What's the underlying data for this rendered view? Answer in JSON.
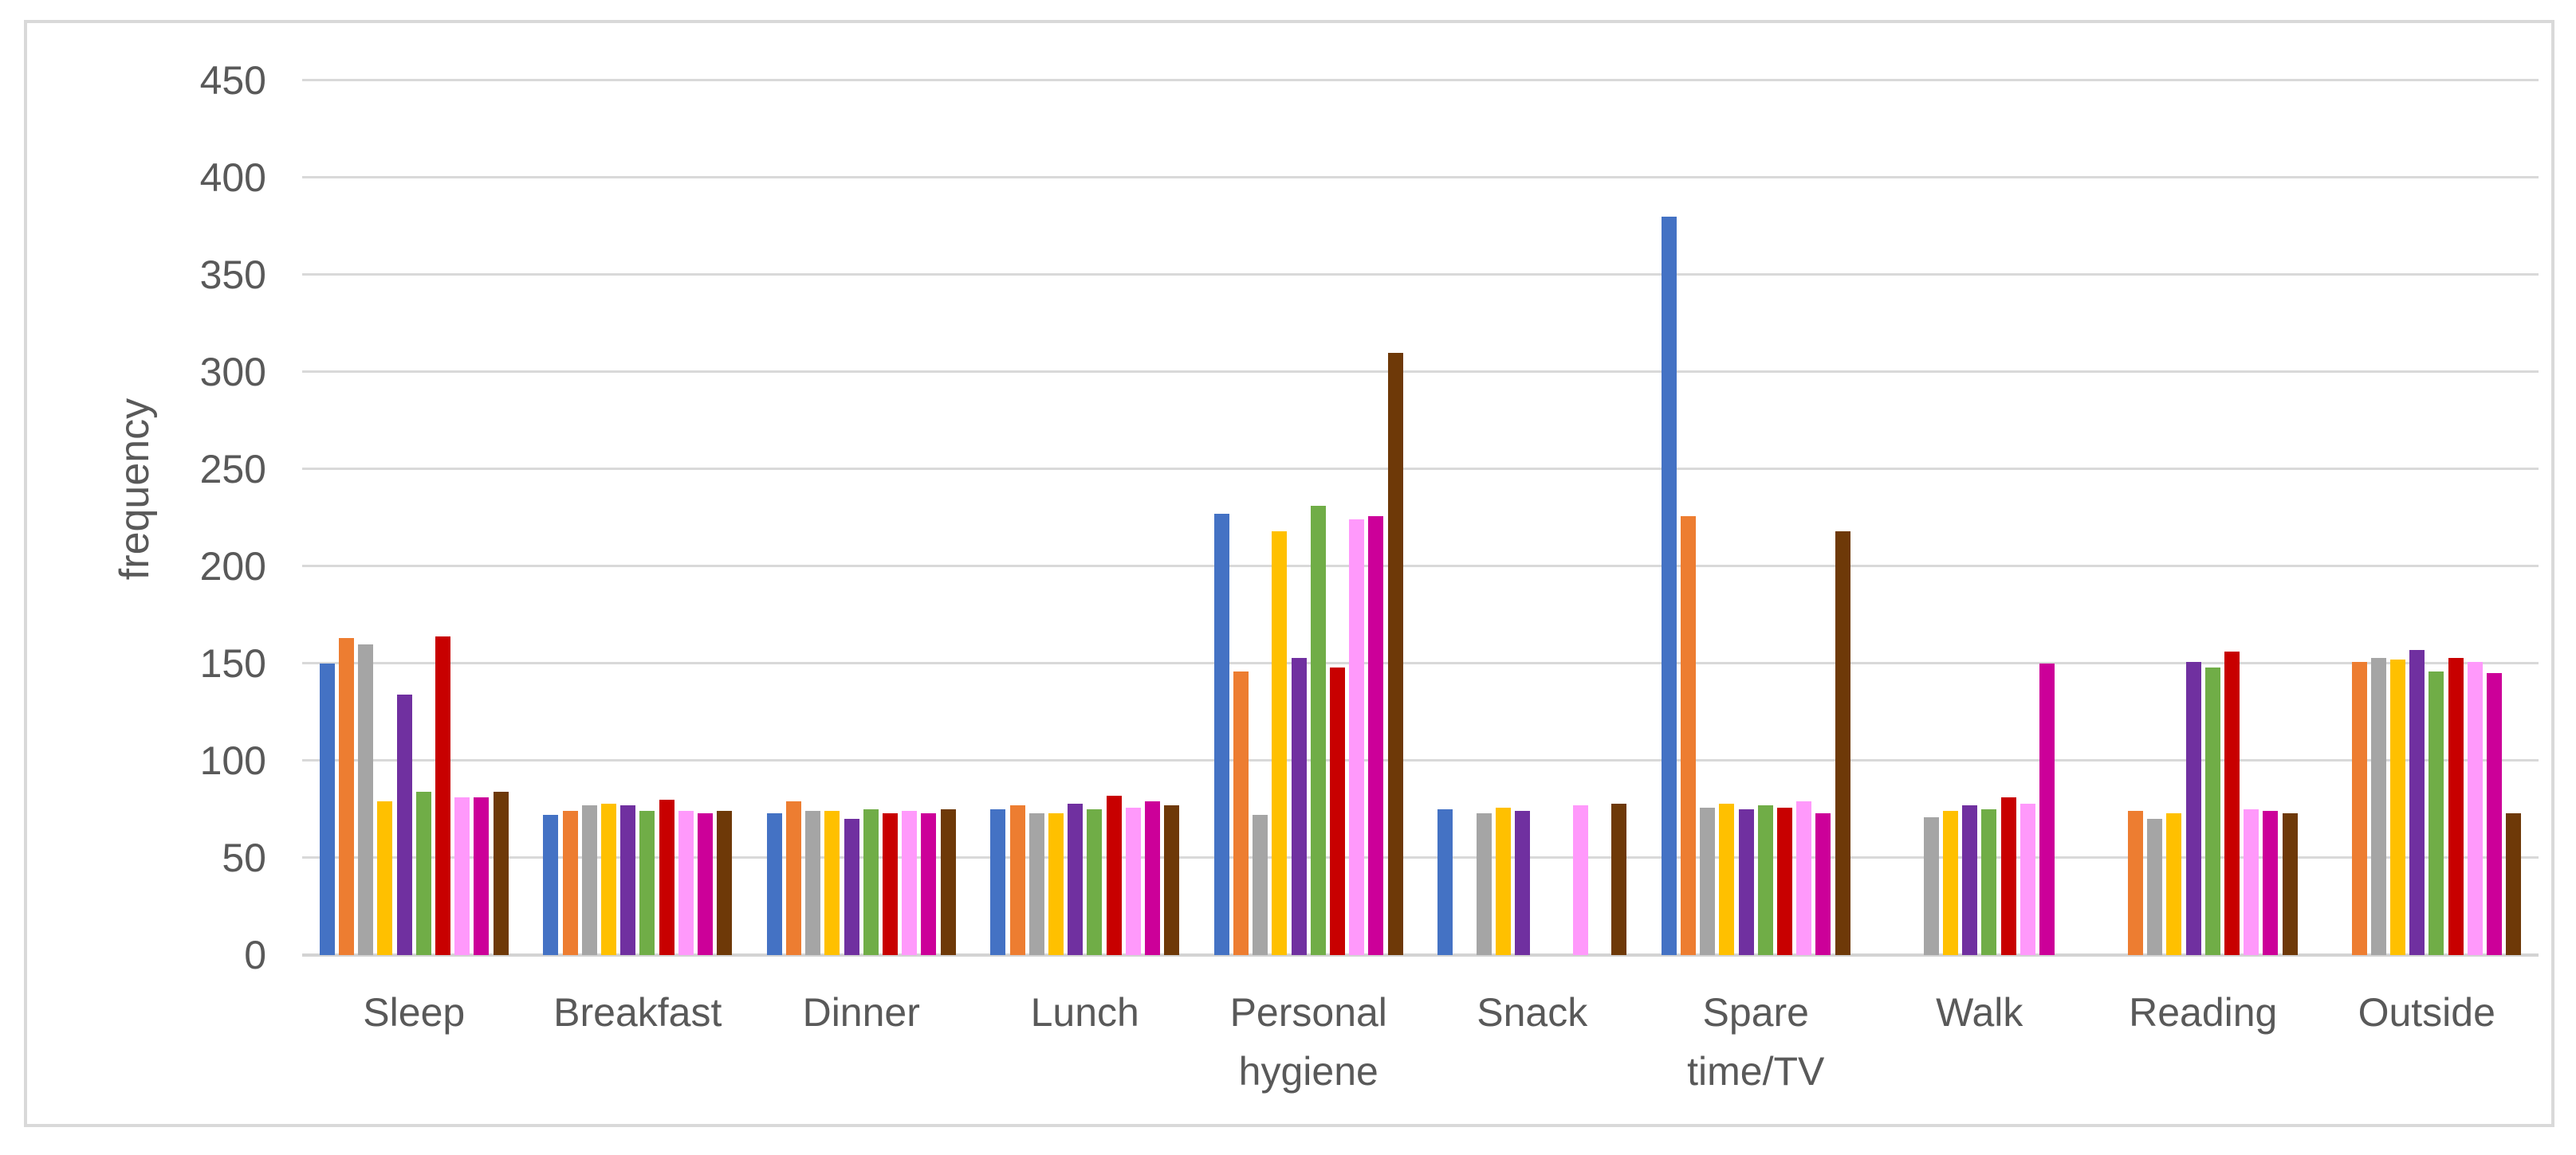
{
  "chart_data": {
    "type": "bar",
    "title": "",
    "xlabel": "",
    "ylabel": "frequency",
    "ylim": [
      0,
      450
    ],
    "yticks": [
      0,
      50,
      100,
      150,
      200,
      250,
      300,
      350,
      400,
      450
    ],
    "grid": true,
    "legend": "none",
    "categories": [
      "Sleep",
      "Breakfast",
      "Dinner",
      "Lunch",
      "Personal hygiene",
      "Snack",
      "Spare time/TV",
      "Walk",
      "Reading",
      "Outside"
    ],
    "series": [
      {
        "name": "blue",
        "color": "#4472C4",
        "values": [
          150,
          72,
          73,
          75,
          227,
          75,
          380,
          0,
          0,
          0
        ]
      },
      {
        "name": "orange",
        "color": "#ED7D31",
        "values": [
          163,
          74,
          79,
          77,
          146,
          0,
          226,
          0,
          74,
          151
        ]
      },
      {
        "name": "gray",
        "color": "#A5A5A5",
        "values": [
          160,
          77,
          74,
          73,
          72,
          73,
          76,
          71,
          70,
          153
        ]
      },
      {
        "name": "gold",
        "color": "#FFC000",
        "values": [
          79,
          78,
          74,
          73,
          218,
          76,
          78,
          74,
          73,
          152
        ]
      },
      {
        "name": "purple",
        "color": "#7030A0",
        "values": [
          134,
          77,
          70,
          78,
          153,
          74,
          75,
          77,
          151,
          157
        ]
      },
      {
        "name": "green",
        "color": "#70AD47",
        "values": [
          84,
          74,
          75,
          75,
          231,
          0,
          77,
          75,
          148,
          146
        ]
      },
      {
        "name": "red",
        "color": "#C80000",
        "values": [
          164,
          80,
          73,
          82,
          148,
          0,
          76,
          81,
          156,
          153
        ]
      },
      {
        "name": "pink",
        "color": "#FF99FB",
        "values": [
          81,
          74,
          74,
          76,
          224,
          77,
          79,
          78,
          75,
          151
        ]
      },
      {
        "name": "magenta",
        "color": "#CC0099",
        "values": [
          81,
          73,
          73,
          79,
          226,
          0,
          73,
          150,
          74,
          145
        ]
      },
      {
        "name": "brown",
        "color": "#6E3908",
        "values": [
          84,
          74,
          75,
          77,
          310,
          78,
          218,
          0,
          73,
          73
        ]
      }
    ]
  },
  "colors": {
    "grid": "#D9D9D9",
    "axis_text": "#595959",
    "frame_border": "#D9D9D9",
    "background": "#FFFFFF"
  }
}
